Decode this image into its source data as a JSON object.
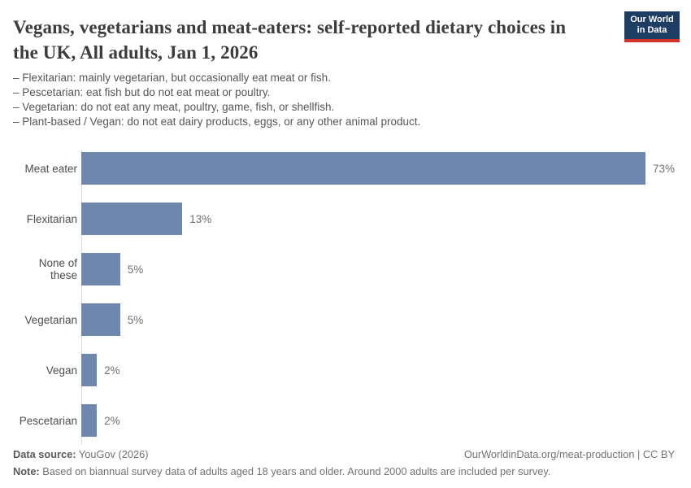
{
  "header": {
    "title": "Vegans, vegetarians and meat-eaters: self-reported dietary choices in the UK, All adults, Jan 1, 2026",
    "title_lines": [
      "Vegans, vegetarians and meat-eaters: self-reported dietary choices in",
      "the UK, All adults, Jan 1, 2026"
    ],
    "subtitle_lines": [
      "– Flexitarian: mainly vegetarian, but occasionally eat meat or fish.",
      "– Pescetarian: eat fish but do not eat meat or poultry.",
      "– Vegetarian: do not eat any meat, poultry, game, fish, or shellfish.",
      "– Plant-based / Vegan: do not eat dairy products, eggs, or any other animal product."
    ],
    "title_color": "#3c3c3c"
  },
  "logo": {
    "line1": "Our World",
    "line2": "in Data",
    "bg_color": "#1d3d63",
    "accent_color": "#d13328"
  },
  "chart_data": {
    "type": "bar",
    "orientation": "horizontal",
    "title": "Vegans, vegetarians and meat-eaters: self-reported dietary choices in the UK, All adults, Jan 1, 2026",
    "categories": [
      "Meat eater",
      "Flexitarian",
      "None of these",
      "Vegetarian",
      "Vegan",
      "Pescetarian"
    ],
    "values": [
      73,
      13,
      5,
      5,
      2,
      2
    ],
    "value_labels": [
      "73%",
      "13%",
      "5%",
      "5%",
      "2%",
      "2%"
    ],
    "unit": "%",
    "xlim": [
      0,
      73
    ],
    "grid": false,
    "legend": "none",
    "bar_color": "#6d87ad",
    "axis_color": "#dcdcdc"
  },
  "footer": {
    "source_label": "Data source:",
    "source_value": " YouGov (2026)",
    "origin_url": "OurWorldinData.org/meat-production | CC BY",
    "note_label": "Note:",
    "note_value": " Based on biannual survey data of adults aged 18 years and older. Around 2000 adults are included per survey."
  }
}
